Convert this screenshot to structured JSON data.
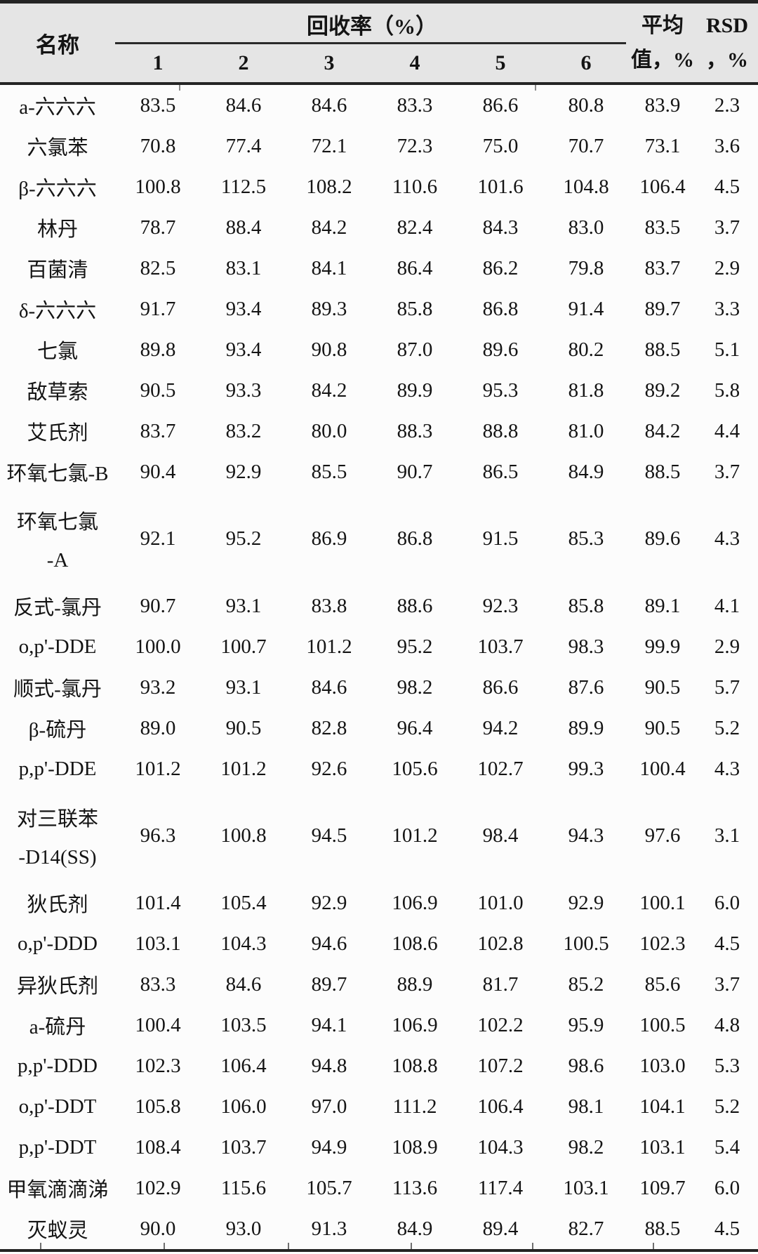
{
  "table": {
    "name_header": "名称",
    "recovery_header": "回收率（%）",
    "run_headers": [
      "1",
      "2",
      "3",
      "4",
      "5",
      "6"
    ],
    "avg_header_line1": "平均",
    "avg_header_line2": "值，%",
    "rsd_header_line1": "RSD",
    "rsd_header_line2": "，%",
    "rows": [
      {
        "name_lines": [
          "a-六六六"
        ],
        "values": [
          "83.5",
          "84.6",
          "84.6",
          "83.3",
          "86.6",
          "80.8"
        ],
        "avg": "83.9",
        "rsd": "2.3"
      },
      {
        "name_lines": [
          "六氯苯"
        ],
        "values": [
          "70.8",
          "77.4",
          "72.1",
          "72.3",
          "75.0",
          "70.7"
        ],
        "avg": "73.1",
        "rsd": "3.6"
      },
      {
        "name_lines": [
          "β-六六六"
        ],
        "values": [
          "100.8",
          "112.5",
          "108.2",
          "110.6",
          "101.6",
          "104.8"
        ],
        "avg": "106.4",
        "rsd": "4.5"
      },
      {
        "name_lines": [
          "林丹"
        ],
        "values": [
          "78.7",
          "88.4",
          "84.2",
          "82.4",
          "84.3",
          "83.0"
        ],
        "avg": "83.5",
        "rsd": "3.7"
      },
      {
        "name_lines": [
          "百菌清"
        ],
        "values": [
          "82.5",
          "83.1",
          "84.1",
          "86.4",
          "86.2",
          "79.8"
        ],
        "avg": "83.7",
        "rsd": "2.9"
      },
      {
        "name_lines": [
          "δ-六六六"
        ],
        "values": [
          "91.7",
          "93.4",
          "89.3",
          "85.8",
          "86.8",
          "91.4"
        ],
        "avg": "89.7",
        "rsd": "3.3"
      },
      {
        "name_lines": [
          "七氯"
        ],
        "values": [
          "89.8",
          "93.4",
          "90.8",
          "87.0",
          "89.6",
          "80.2"
        ],
        "avg": "88.5",
        "rsd": "5.1"
      },
      {
        "name_lines": [
          "敌草索"
        ],
        "values": [
          "90.5",
          "93.3",
          "84.2",
          "89.9",
          "95.3",
          "81.8"
        ],
        "avg": "89.2",
        "rsd": "5.8"
      },
      {
        "name_lines": [
          "艾氏剂"
        ],
        "values": [
          "83.7",
          "83.2",
          "80.0",
          "88.3",
          "88.8",
          "81.0"
        ],
        "avg": "84.2",
        "rsd": "4.4"
      },
      {
        "name_lines": [
          "环氧七氯-B"
        ],
        "values": [
          "90.4",
          "92.9",
          "85.5",
          "90.7",
          "86.5",
          "84.9"
        ],
        "avg": "88.5",
        "rsd": "3.7"
      },
      {
        "name_lines": [
          "环氧七氯",
          "-A"
        ],
        "values": [
          "92.1",
          "95.2",
          "86.9",
          "86.8",
          "91.5",
          "85.3"
        ],
        "avg": "89.6",
        "rsd": "4.3"
      },
      {
        "name_lines": [
          "反式-氯丹"
        ],
        "values": [
          "90.7",
          "93.1",
          "83.8",
          "88.6",
          "92.3",
          "85.8"
        ],
        "avg": "89.1",
        "rsd": "4.1"
      },
      {
        "name_lines": [
          "o,p'-DDE"
        ],
        "values": [
          "100.0",
          "100.7",
          "101.2",
          "95.2",
          "103.7",
          "98.3"
        ],
        "avg": "99.9",
        "rsd": "2.9"
      },
      {
        "name_lines": [
          "顺式-氯丹"
        ],
        "values": [
          "93.2",
          "93.1",
          "84.6",
          "98.2",
          "86.6",
          "87.6"
        ],
        "avg": "90.5",
        "rsd": "5.7"
      },
      {
        "name_lines": [
          "β-硫丹"
        ],
        "values": [
          "89.0",
          "90.5",
          "82.8",
          "96.4",
          "94.2",
          "89.9"
        ],
        "avg": "90.5",
        "rsd": "5.2"
      },
      {
        "name_lines": [
          "p,p'-DDE"
        ],
        "values": [
          "101.2",
          "101.2",
          "92.6",
          "105.6",
          "102.7",
          "99.3"
        ],
        "avg": "100.4",
        "rsd": "4.3"
      },
      {
        "name_lines": [
          "对三联苯",
          "-D14(SS)"
        ],
        "values": [
          "96.3",
          "100.8",
          "94.5",
          "101.2",
          "98.4",
          "94.3"
        ],
        "avg": "97.6",
        "rsd": "3.1"
      },
      {
        "name_lines": [
          "狄氏剂"
        ],
        "values": [
          "101.4",
          "105.4",
          "92.9",
          "106.9",
          "101.0",
          "92.9"
        ],
        "avg": "100.1",
        "rsd": "6.0"
      },
      {
        "name_lines": [
          "o,p'-DDD"
        ],
        "values": [
          "103.1",
          "104.3",
          "94.6",
          "108.6",
          "102.8",
          "100.5"
        ],
        "avg": "102.3",
        "rsd": "4.5"
      },
      {
        "name_lines": [
          "异狄氏剂"
        ],
        "values": [
          "83.3",
          "84.6",
          "89.7",
          "88.9",
          "81.7",
          "85.2"
        ],
        "avg": "85.6",
        "rsd": "3.7"
      },
      {
        "name_lines": [
          "a-硫丹"
        ],
        "values": [
          "100.4",
          "103.5",
          "94.1",
          "106.9",
          "102.2",
          "95.9"
        ],
        "avg": "100.5",
        "rsd": "4.8"
      },
      {
        "name_lines": [
          "p,p'-DDD"
        ],
        "values": [
          "102.3",
          "106.4",
          "94.8",
          "108.8",
          "107.2",
          "98.6"
        ],
        "avg": "103.0",
        "rsd": "5.3"
      },
      {
        "name_lines": [
          "o,p'-DDT"
        ],
        "values": [
          "105.8",
          "106.0",
          "97.0",
          "111.2",
          "106.4",
          "98.1"
        ],
        "avg": "104.1",
        "rsd": "5.2"
      },
      {
        "name_lines": [
          "p,p'-DDT"
        ],
        "values": [
          "108.4",
          "103.7",
          "94.9",
          "108.9",
          "104.3",
          "98.2"
        ],
        "avg": "103.1",
        "rsd": "5.4"
      },
      {
        "name_lines": [
          "甲氧滴滴涕"
        ],
        "values": [
          "102.9",
          "115.6",
          "105.7",
          "113.6",
          "117.4",
          "103.1"
        ],
        "avg": "109.7",
        "rsd": "6.0"
      },
      {
        "name_lines": [
          "灭蚁灵"
        ],
        "values": [
          "90.0",
          "93.0",
          "91.3",
          "84.9",
          "89.4",
          "82.7"
        ],
        "avg": "88.5",
        "rsd": "4.5"
      }
    ]
  },
  "colors": {
    "header_bg": "#e5e5e5",
    "body_bg": "#fcfcfc",
    "line": "#242424",
    "text": "#141414"
  }
}
